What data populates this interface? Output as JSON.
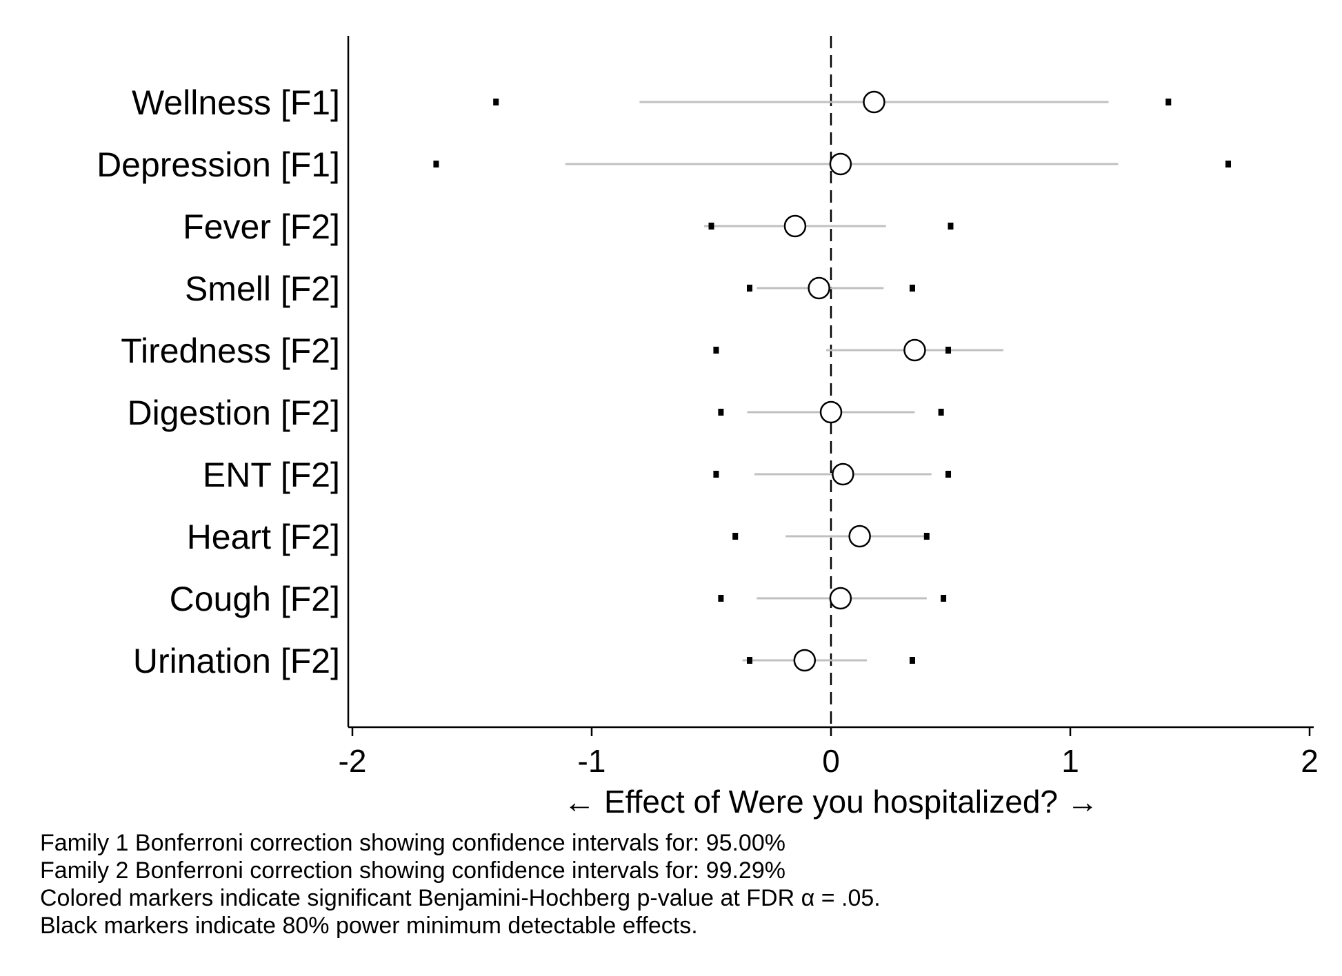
{
  "chart_data": {
    "type": "forest",
    "xlabel": "← Effect of Were you hospitalized? →",
    "xlim": [
      -2,
      2
    ],
    "xticks": [
      -2,
      -1,
      0,
      1,
      2
    ],
    "xtick_labels": [
      "-2",
      "-1",
      "0",
      "1",
      "2"
    ],
    "reference_line": 0,
    "grid": false,
    "categories": [
      "Wellness [F1]",
      "Depression [F1]",
      "Fever [F2]",
      "Smell [F2]",
      "Tiredness [F2]",
      "Digestion [F2]",
      "ENT [F2]",
      "Heart [F2]",
      "Cough [F2]",
      "Urination [F2]"
    ],
    "estimates": [
      0.18,
      0.04,
      -0.15,
      -0.05,
      0.35,
      0.0,
      0.05,
      0.12,
      0.04,
      -0.11
    ],
    "ci_low": [
      -0.8,
      -1.11,
      -0.53,
      -0.31,
      -0.02,
      -0.35,
      -0.32,
      -0.19,
      -0.31,
      -0.37
    ],
    "ci_high": [
      1.16,
      1.2,
      0.23,
      0.22,
      0.72,
      0.35,
      0.42,
      0.41,
      0.4,
      0.15
    ],
    "mde_low": [
      -1.4,
      -1.65,
      -0.5,
      -0.34,
      -0.48,
      -0.46,
      -0.48,
      -0.4,
      -0.46,
      -0.34
    ],
    "mde_high": [
      1.41,
      1.66,
      0.5,
      0.34,
      0.49,
      0.46,
      0.49,
      0.4,
      0.47,
      0.34
    ],
    "colors": {
      "ci_line": "#c0c0c0",
      "marker_fill": "#ffffff",
      "marker_stroke": "#000000",
      "mde_marker": "#000000",
      "axis": "#000000"
    },
    "notes": [
      "Family 1 Bonferroni correction showing confidence intervals for: 95.00%",
      "Family 2 Bonferroni correction showing confidence intervals for: 99.29%",
      "Colored markers indicate significant Benjamini-Hochberg p-value at FDR α = .05.",
      "Black markers indicate 80% power minimum detectable effects."
    ]
  }
}
